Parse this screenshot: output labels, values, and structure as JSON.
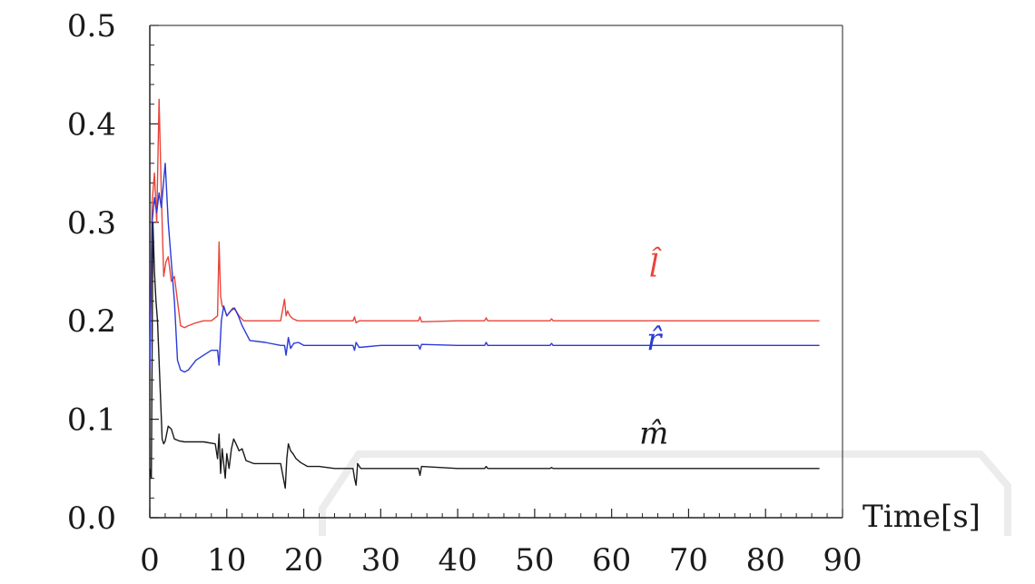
{
  "chart_data": {
    "type": "line",
    "title": "",
    "xlabel": "Time[s]",
    "ylabel": "",
    "xlim": [
      0,
      90
    ],
    "ylim": [
      0.0,
      0.5
    ],
    "grid": false,
    "x_ticks": [
      0,
      10,
      20,
      30,
      40,
      50,
      60,
      70,
      80,
      90
    ],
    "x_tick_labels": [
      "0",
      "10",
      "20",
      "30",
      "40",
      "50",
      "60",
      "70",
      "80",
      "90"
    ],
    "y_ticks": [
      0.0,
      0.1,
      0.2,
      0.3,
      0.4,
      0.5
    ],
    "y_tick_labels": [
      "0.0",
      "0.1",
      "0.2",
      "0.3",
      "0.4",
      "0.5"
    ],
    "series": [
      {
        "name": "l̂",
        "color": "#e8443a",
        "label_pos": [
          65.5,
          0.245
        ],
        "x": [
          0,
          0.3,
          0.6,
          0.9,
          1.2,
          1.5,
          1.8,
          2.1,
          2.4,
          2.8,
          3.2,
          3.6,
          4.0,
          4.5,
          5.0,
          6,
          7,
          8,
          8.8,
          9.0,
          9.2,
          9.4,
          9.7,
          10.0,
          10.5,
          10.8,
          11.2,
          11.6,
          12.2,
          13,
          15,
          17,
          17.5,
          17.7,
          17.9,
          18.2,
          18.6,
          19.2,
          20,
          22,
          25,
          26.4,
          26.6,
          26.8,
          27.2,
          30,
          34.9,
          35.1,
          35.3,
          40,
          43.5,
          43.7,
          43.9,
          52,
          52.2,
          52.4,
          60,
          70,
          80,
          87
        ],
        "y": [
          0.15,
          0.32,
          0.35,
          0.3,
          0.425,
          0.33,
          0.245,
          0.26,
          0.265,
          0.24,
          0.245,
          0.22,
          0.195,
          0.193,
          0.195,
          0.198,
          0.2,
          0.2,
          0.205,
          0.28,
          0.225,
          0.215,
          0.212,
          0.205,
          0.21,
          0.213,
          0.21,
          0.205,
          0.2,
          0.2,
          0.2,
          0.2,
          0.222,
          0.205,
          0.21,
          0.205,
          0.202,
          0.2,
          0.2,
          0.2,
          0.2,
          0.2,
          0.204,
          0.198,
          0.2,
          0.2,
          0.2,
          0.204,
          0.199,
          0.2,
          0.2,
          0.203,
          0.2,
          0.2,
          0.202,
          0.2,
          0.2,
          0.2,
          0.2,
          0.2
        ]
      },
      {
        "name": "r̂",
        "color": "#2a3ad8",
        "label_pos": [
          65.5,
          0.17
        ],
        "x": [
          0,
          0.3,
          0.6,
          0.9,
          1.2,
          1.5,
          2.0,
          2.4,
          2.8,
          3.2,
          3.6,
          4.0,
          4.5,
          5.0,
          6,
          7,
          8,
          8.8,
          9.0,
          9.3,
          9.6,
          10.0,
          10.5,
          11,
          11.5,
          12,
          13,
          15,
          17,
          17.5,
          17.7,
          18,
          18.3,
          18.7,
          19.3,
          20,
          22,
          25,
          26.4,
          26.6,
          26.8,
          27.2,
          30,
          34.9,
          35.1,
          35.3,
          40,
          43.5,
          43.7,
          43.9,
          52,
          52.2,
          52.4,
          60,
          70,
          80,
          87
        ],
        "y": [
          0.15,
          0.3,
          0.325,
          0.31,
          0.33,
          0.315,
          0.36,
          0.3,
          0.26,
          0.22,
          0.16,
          0.15,
          0.148,
          0.15,
          0.16,
          0.165,
          0.17,
          0.17,
          0.155,
          0.2,
          0.215,
          0.205,
          0.21,
          0.213,
          0.205,
          0.195,
          0.18,
          0.178,
          0.175,
          0.175,
          0.165,
          0.183,
          0.172,
          0.177,
          0.178,
          0.175,
          0.175,
          0.175,
          0.175,
          0.17,
          0.178,
          0.173,
          0.175,
          0.175,
          0.171,
          0.176,
          0.175,
          0.175,
          0.178,
          0.175,
          0.175,
          0.177,
          0.175,
          0.175,
          0.175,
          0.175,
          0.175
        ]
      },
      {
        "name": "m̂",
        "color": "#1a1a1a",
        "label_pos": [
          65.5,
          0.075
        ],
        "x": [
          0,
          0.2,
          0.4,
          0.6,
          0.8,
          1.0,
          1.2,
          1.4,
          1.6,
          1.8,
          2.0,
          2.4,
          2.8,
          3.2,
          3.8,
          4.5,
          5.5,
          7,
          8.5,
          8.8,
          9.0,
          9.2,
          9.4,
          9.6,
          9.8,
          10.0,
          10.3,
          10.6,
          10.9,
          11.2,
          11.6,
          12.0,
          12.5,
          13.5,
          15,
          17,
          17.6,
          17.8,
          18.0,
          18.3,
          18.6,
          19.0,
          19.6,
          20.5,
          22,
          24,
          26.4,
          26.6,
          26.8,
          27.0,
          27.4,
          28,
          30,
          34.9,
          35.1,
          35.3,
          40,
          43.5,
          43.7,
          43.9,
          52,
          52.2,
          52.4,
          60,
          70,
          80,
          87
        ],
        "y": [
          0.05,
          0.04,
          0.3,
          0.25,
          0.22,
          0.2,
          0.16,
          0.12,
          0.08,
          0.075,
          0.078,
          0.093,
          0.09,
          0.08,
          0.078,
          0.077,
          0.077,
          0.077,
          0.075,
          0.06,
          0.085,
          0.045,
          0.07,
          0.055,
          0.04,
          0.065,
          0.05,
          0.07,
          0.08,
          0.075,
          0.068,
          0.07,
          0.058,
          0.055,
          0.055,
          0.055,
          0.03,
          0.06,
          0.075,
          0.068,
          0.065,
          0.06,
          0.056,
          0.052,
          0.052,
          0.05,
          0.05,
          0.04,
          0.033,
          0.055,
          0.05,
          0.05,
          0.05,
          0.05,
          0.043,
          0.052,
          0.05,
          0.05,
          0.052,
          0.05,
          0.05,
          0.051,
          0.05,
          0.05,
          0.05,
          0.05,
          0.05
        ]
      }
    ]
  }
}
